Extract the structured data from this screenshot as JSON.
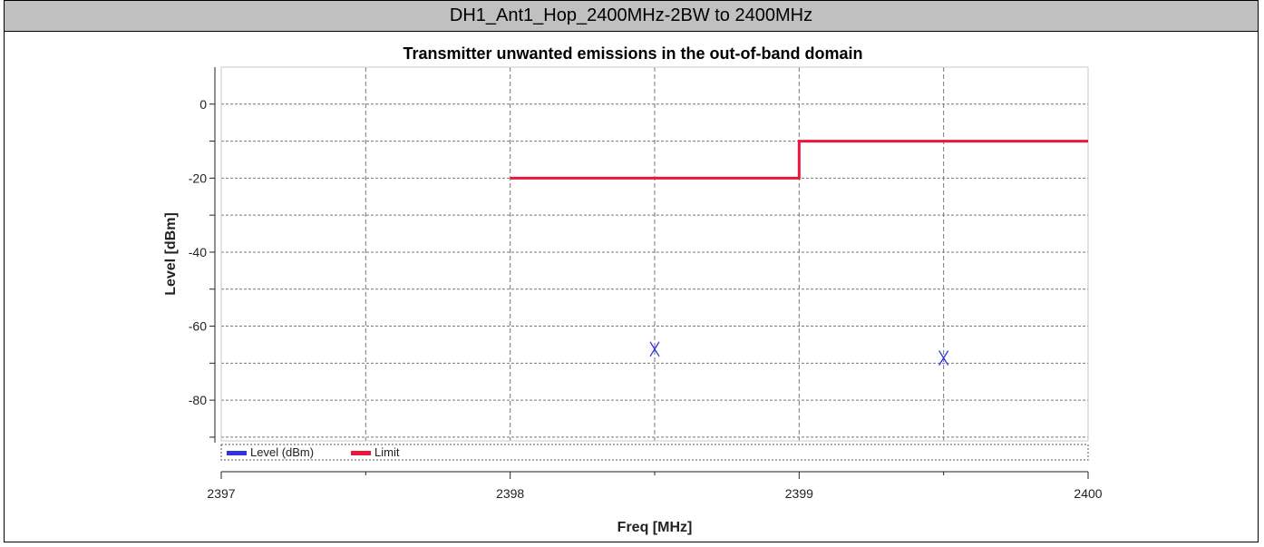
{
  "header": {
    "title": "DH1_Ant1_Hop_2400MHz-2BW to 2400MHz"
  },
  "chart_data": {
    "type": "line",
    "title": "Transmitter unwanted emissions in the out-of-band domain",
    "xlabel": "Freq [MHz]",
    "ylabel": "Level [dBm]",
    "xlim": [
      2397,
      2400
    ],
    "ylim": [
      -91,
      10
    ],
    "x_ticks": [
      2397,
      2398,
      2399,
      2400
    ],
    "y_ticks": [
      0,
      -20,
      -40,
      -60,
      -80
    ],
    "grid": true,
    "legend_position": "bottom-left",
    "series": [
      {
        "name": "Level (dBm)",
        "color": "#3333dd",
        "marker": "x",
        "points": [
          {
            "x": 2398.5,
            "y": -66.2
          },
          {
            "x": 2399.5,
            "y": -68.6
          }
        ]
      },
      {
        "name": "Limit",
        "color": "#e8173c",
        "points": [
          {
            "x": 2398,
            "y": -20
          },
          {
            "x": 2399,
            "y": -20
          },
          {
            "x": 2399,
            "y": -10
          },
          {
            "x": 2400,
            "y": -10
          }
        ]
      }
    ]
  }
}
